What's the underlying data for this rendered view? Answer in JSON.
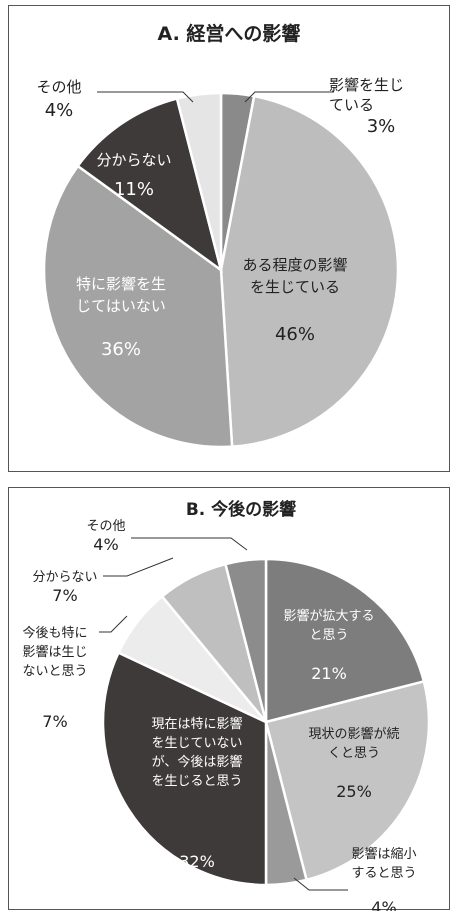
{
  "chart_data": [
    {
      "type": "pie",
      "title": "A. 経営への影響",
      "start_angle_deg": 0,
      "direction": "clockwise",
      "slices": [
        {
          "label": "影響を生じている",
          "label_lines": [
            "影響を生じ",
            "ている"
          ],
          "value": 3,
          "value_text": "3%",
          "color": "#8a8a8a"
        },
        {
          "label": "ある程度の影響を生じている",
          "label_lines": [
            "ある程度の影響",
            "を生じている"
          ],
          "value": 46,
          "value_text": "46%",
          "color": "#bdbdbd"
        },
        {
          "label": "特に影響を生じてはいない",
          "label_lines": [
            "特に影響を生",
            "じてはいない"
          ],
          "value": 36,
          "value_text": "36%",
          "color": "#a3a3a3"
        },
        {
          "label": "分からない",
          "label_lines": [
            "分からない"
          ],
          "value": 11,
          "value_text": "11%",
          "color": "#3e3a39"
        },
        {
          "label": "その他",
          "label_lines": [
            "その他"
          ],
          "value": 4,
          "value_text": "4%",
          "color": "#e5e5e5"
        }
      ]
    },
    {
      "type": "pie",
      "title": "B. 今後の影響",
      "start_angle_deg": 0,
      "direction": "clockwise",
      "slices": [
        {
          "label": "影響が拡大すると思う",
          "label_lines": [
            "影響が拡大する",
            "と思う"
          ],
          "value": 21,
          "value_text": "21%",
          "color": "#7d7d7d"
        },
        {
          "label": "現状の影響が続くと思う",
          "label_lines": [
            "現状の影響が続",
            "くと思う"
          ],
          "value": 25,
          "value_text": "25%",
          "color": "#c4c4c4"
        },
        {
          "label": "影響は縮小すると思う",
          "label_lines": [
            "影響は縮小",
            "すると思う"
          ],
          "value": 4,
          "value_text": "4%",
          "color": "#9a9a9a"
        },
        {
          "label": "現在は特に影響を生じていないが、今後は影響を生じると思う",
          "label_lines": [
            "現在は特に影響",
            "を生じていない",
            "が、今後は影響",
            "を生じると思う"
          ],
          "value": 32,
          "value_text": "32%",
          "color": "#3e3a39"
        },
        {
          "label": "今後も特に影響は生じないと思う",
          "label_lines": [
            "今後も特に",
            "影響は生じ",
            "ないと思う"
          ],
          "value": 7,
          "value_text": "7%",
          "color": "#ececec"
        },
        {
          "label": "分からない",
          "label_lines": [
            "分からない"
          ],
          "value": 7,
          "value_text": "7%",
          "color": "#bfbfbf"
        },
        {
          "label": "その他",
          "label_lines": [
            "その他"
          ],
          "value": 4,
          "value_text": "4%",
          "color": "#8c8c8c"
        }
      ]
    }
  ]
}
